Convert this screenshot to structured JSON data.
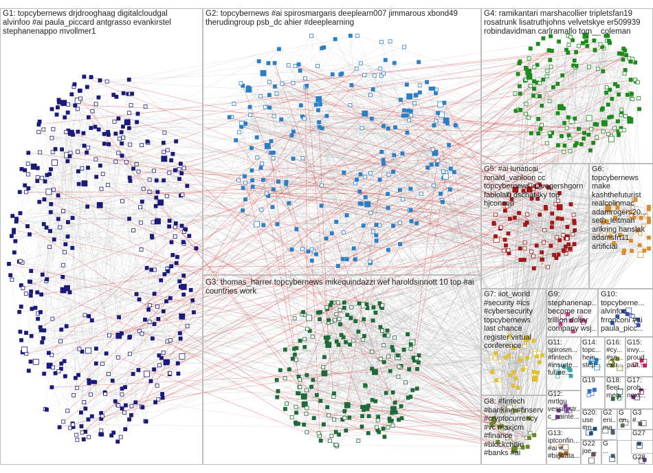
{
  "groups": [
    {
      "id": "G1",
      "lines": [
        "G1: topcybernews drjdrooghaag digitalcloudgal",
        "alvinfoo #ai paula_piccard antgrasso evankirstel",
        "stephanenappo mvollmer1"
      ],
      "color": "#1a1a7a"
    },
    {
      "id": "G2",
      "lines": [
        "G2: topcybernews #ai spirosmargaris deeplearn007 jimmarous xbond49",
        "therudingroup psb_dc ahier #deeplearning"
      ],
      "color": "#2a7fc7"
    },
    {
      "id": "G3",
      "lines": [
        "G3: thomas_harrer topcybernews mikequindazzi wef haroldsinnott 10 top #ai",
        "countries work"
      ],
      "color": "#1e6b3a"
    },
    {
      "id": "G4",
      "lines": [
        "G4: ramikantari marshacollier tripletsfan19",
        "rosatrunk lisatruthjohns velvetskye er509939",
        "robindavidman carlramallo tom__coleman"
      ],
      "color": "#1c8a1c"
    },
    {
      "id": "G5",
      "lines": [
        "G5: #ai lunaticai_",
        "ronald_vanloon cc",
        "topcybernews davegershgorn",
        "fabiolalli dschatsky top",
        "hjconcep"
      ],
      "color": "#a01818"
    },
    {
      "id": "G6",
      "lines": [
        "G6:",
        "topcybernews",
        "make",
        "kashthefuturist",
        "realcolinmac",
        "adamrogers20...",
        "seth_leitman",
        "arikring hanslak",
        "adamsfrt11",
        "artificial"
      ],
      "color": "#d98c2a"
    },
    {
      "id": "G7",
      "lines": [
        "G7: iiot_world",
        "#security #ics",
        "#cybersecurity",
        "topcybernews",
        "last chance",
        "register virtual",
        "conference"
      ],
      "color": "#e0c030"
    },
    {
      "id": "G8",
      "lines": [
        "G8: #fintech",
        "#banking #finserv",
        "#cryptocurrency",
        "#vc maxjcm",
        "#finance",
        "#blockchain",
        "#banks #ai"
      ],
      "color": "#6a8a2a"
    },
    {
      "id": "G9",
      "lines": [
        "G9:",
        "stephanenap...",
        "become race",
        "trillion dollar",
        "company wsj..."
      ],
      "color": "#c04080"
    },
    {
      "id": "G10",
      "lines": [
        "G10:",
        "topcyberne...",
        "alvinfoo",
        "frronconi #ai",
        "paula_picc..."
      ],
      "color": "#3050b0"
    },
    {
      "id": "G11",
      "lines": [
        "G11:",
        "spirosm...",
        "#fintech",
        "#insurte...",
        "future..."
      ],
      "color": "#40a0a0"
    },
    {
      "id": "G12",
      "lines": [
        "G12:",
        "mrtlgu",
        "vessii_str...",
        "c_painte..."
      ],
      "color": "#8040a0"
    },
    {
      "id": "G13",
      "lines": [
        "G13:",
        "iptconfin...",
        "#ai #...",
        "#bigdata..."
      ],
      "color": "#a06020"
    },
    {
      "id": "G14",
      "lines": [
        "G14:",
        "topc...",
        "hein...",
        "step..."
      ],
      "color": "#2080c0"
    },
    {
      "id": "G16",
      "lines": [
        "G16:",
        "#cy...",
        "#se...",
        "extr..."
      ],
      "color": "#808020"
    },
    {
      "id": "G15",
      "lines": [
        "G15:",
        "invy...",
        "proud",
        "part..."
      ],
      "color": "#c02060"
    },
    {
      "id": "G19",
      "lines": [
        "G19"
      ],
      "color": "#3070d0"
    },
    {
      "id": "G18",
      "lines": [
        "G18:",
        "fleet...",
        "meg..."
      ],
      "color": "#207040"
    },
    {
      "id": "G17",
      "lines": [
        "G17:",
        "prob...",
        "next..."
      ],
      "color": "#702070"
    },
    {
      "id": "G20",
      "lines": [
        "G20:",
        "use",
        "#m..."
      ],
      "color": "#205080"
    },
    {
      "id": "G2x1",
      "lines": [
        "G2",
        "eni...",
        "ma..."
      ],
      "color": "#506070"
    },
    {
      "id": "G2x2",
      "lines": [
        "G",
        "en..."
      ],
      "color": "#607050"
    },
    {
      "id": "G22",
      "lines": [
        "G22",
        "joe..."
      ],
      "color": "#705060"
    },
    {
      "id": "G2x3",
      "lines": [
        "G",
        "..."
      ],
      "color": "#406070"
    },
    {
      "id": "G3x",
      "lines": [
        "G3",
        "#..."
      ],
      "color": "#506050"
    },
    {
      "id": "G27",
      "lines": [
        "G27"
      ],
      "color": "#305070"
    },
    {
      "id": "G28",
      "lines": [
        "G28"
      ],
      "color": "#604070"
    }
  ]
}
